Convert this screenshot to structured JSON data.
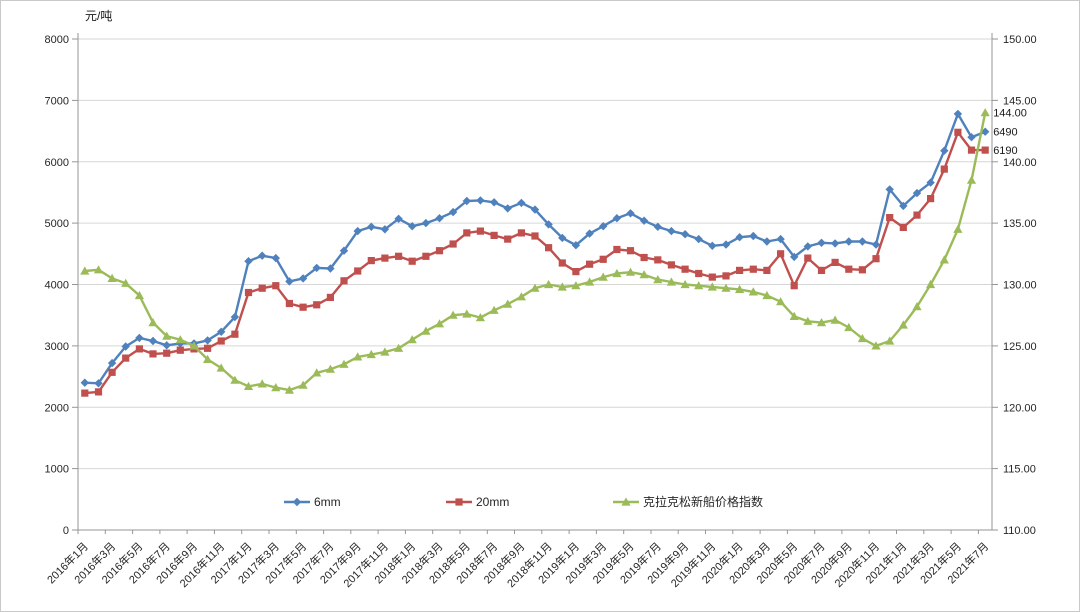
{
  "chart": {
    "y_left_title": "元/吨",
    "left_axis": {
      "min": 0,
      "max": 8000,
      "step": 1000,
      "tick_labels": [
        "0",
        "1000",
        "2000",
        "3000",
        "4000",
        "5000",
        "6000",
        "7000",
        "8000"
      ]
    },
    "right_axis": {
      "min": 110,
      "max": 150,
      "step": 5,
      "tick_labels": [
        "110.00",
        "115.00",
        "120.00",
        "125.00",
        "130.00",
        "135.00",
        "140.00",
        "145.00",
        "150.00"
      ]
    },
    "x_tick_labels": [
      "2016年1月",
      "2016年3月",
      "2016年5月",
      "2016年7月",
      "2016年9月",
      "2016年11月",
      "2017年1月",
      "2017年3月",
      "2017年5月",
      "2017年7月",
      "2017年9月",
      "2017年11月",
      "2018年1月",
      "2018年3月",
      "2018年5月",
      "2018年7月",
      "2018年9月",
      "2018年11月",
      "2019年1月",
      "2019年3月",
      "2019年5月",
      "2019年7月",
      "2019年9月",
      "2019年11月",
      "2020年1月",
      "2020年3月",
      "2020年5月",
      "2020年7月",
      "2020年9月",
      "2020年11月",
      "2021年1月",
      "2021年3月",
      "2021年5月",
      "2021年7月"
    ],
    "legend": [
      "6mm",
      "20mm",
      "克拉克松新船价格指数"
    ],
    "end_labels": {
      "index": "144.00",
      "blue": "6490",
      "red": "6190"
    },
    "colors": {
      "blue": "#4F81BD",
      "red": "#C0504D",
      "green": "#9BBB59",
      "grid": "#d6d6d6",
      "axis": "#969696",
      "text": "#262626"
    }
  },
  "chart_data": {
    "type": "line",
    "x": [
      "2016年1月",
      "2016年2月",
      "2016年3月",
      "2016年4月",
      "2016年5月",
      "2016年6月",
      "2016年7月",
      "2016年8月",
      "2016年9月",
      "2016年10月",
      "2016年11月",
      "2016年12月",
      "2017年1月",
      "2017年2月",
      "2017年3月",
      "2017年4月",
      "2017年5月",
      "2017年6月",
      "2017年7月",
      "2017年8月",
      "2017年9月",
      "2017年10月",
      "2017年11月",
      "2017年12月",
      "2018年1月",
      "2018年2月",
      "2018年3月",
      "2018年4月",
      "2018年5月",
      "2018年6月",
      "2018年7月",
      "2018年8月",
      "2018年9月",
      "2018年10月",
      "2018年11月",
      "2018年12月",
      "2019年1月",
      "2019年2月",
      "2019年3月",
      "2019年4月",
      "2019年5月",
      "2019年6月",
      "2019年7月",
      "2019年8月",
      "2019年9月",
      "2019年10月",
      "2019年11月",
      "2019年12月",
      "2020年1月",
      "2020年2月",
      "2020年3月",
      "2020年4月",
      "2020年5月",
      "2020年6月",
      "2020年7月",
      "2020年8月",
      "2020年9月",
      "2020年10月",
      "2020年11月",
      "2020年12月",
      "2021年1月",
      "2021年2月",
      "2021年3月",
      "2021年4月",
      "2021年5月",
      "2021年6月",
      "2021年7月"
    ],
    "series": [
      {
        "name": "6mm",
        "axis": "left",
        "color": "#4F81BD",
        "marker": "diamond",
        "values": [
          2400,
          2390,
          2720,
          2990,
          3130,
          3080,
          3010,
          3040,
          3040,
          3090,
          3230,
          3470,
          4380,
          4470,
          4430,
          4050,
          4100,
          4270,
          4260,
          4550,
          4870,
          4940,
          4900,
          5070,
          4950,
          5000,
          5080,
          5180,
          5360,
          5370,
          5340,
          5240,
          5330,
          5220,
          4980,
          4760,
          4640,
          4830,
          4950,
          5080,
          5160,
          5040,
          4940,
          4870,
          4820,
          4740,
          4630,
          4650,
          4770,
          4790,
          4700,
          4740,
          4450,
          4620,
          4680,
          4670,
          4700,
          4700,
          4650,
          5550,
          5280,
          5490,
          5660,
          6180,
          6780,
          6400,
          6490
        ]
      },
      {
        "name": "20mm",
        "axis": "left",
        "color": "#C0504D",
        "marker": "square",
        "values": [
          2230,
          2250,
          2570,
          2800,
          2950,
          2870,
          2880,
          2930,
          2950,
          2960,
          3080,
          3190,
          3870,
          3940,
          3980,
          3690,
          3630,
          3670,
          3790,
          4060,
          4220,
          4390,
          4430,
          4460,
          4380,
          4460,
          4550,
          4660,
          4840,
          4870,
          4800,
          4740,
          4840,
          4790,
          4600,
          4350,
          4210,
          4330,
          4410,
          4570,
          4550,
          4440,
          4400,
          4320,
          4250,
          4180,
          4120,
          4140,
          4230,
          4250,
          4230,
          4500,
          3980,
          4430,
          4230,
          4360,
          4250,
          4240,
          4420,
          5090,
          4930,
          5130,
          5400,
          5880,
          6480,
          6190,
          6190
        ]
      },
      {
        "name": "克拉克松新船价格指数",
        "axis": "right",
        "color": "#9BBB59",
        "marker": "triangle",
        "values": [
          131.1,
          131.2,
          130.5,
          130.1,
          129.1,
          126.9,
          125.8,
          125.5,
          125.0,
          123.9,
          123.2,
          122.2,
          121.7,
          121.9,
          121.6,
          121.4,
          121.8,
          122.8,
          123.1,
          123.5,
          124.1,
          124.3,
          124.5,
          124.8,
          125.5,
          126.2,
          126.8,
          127.5,
          127.6,
          127.3,
          127.9,
          128.4,
          129.0,
          129.7,
          130.0,
          129.8,
          129.9,
          130.2,
          130.6,
          130.9,
          131.0,
          130.8,
          130.4,
          130.2,
          130.0,
          129.9,
          129.8,
          129.7,
          129.6,
          129.4,
          129.1,
          128.6,
          127.4,
          127.0,
          126.9,
          127.1,
          126.5,
          125.6,
          125.0,
          125.4,
          126.7,
          128.2,
          130.0,
          132.0,
          134.5,
          138.5,
          144.0
        ]
      }
    ],
    "left_ylim": [
      0,
      8000
    ],
    "right_ylim": [
      110,
      150
    ],
    "grid": "horizontal",
    "legend_position": "bottom-inside"
  }
}
